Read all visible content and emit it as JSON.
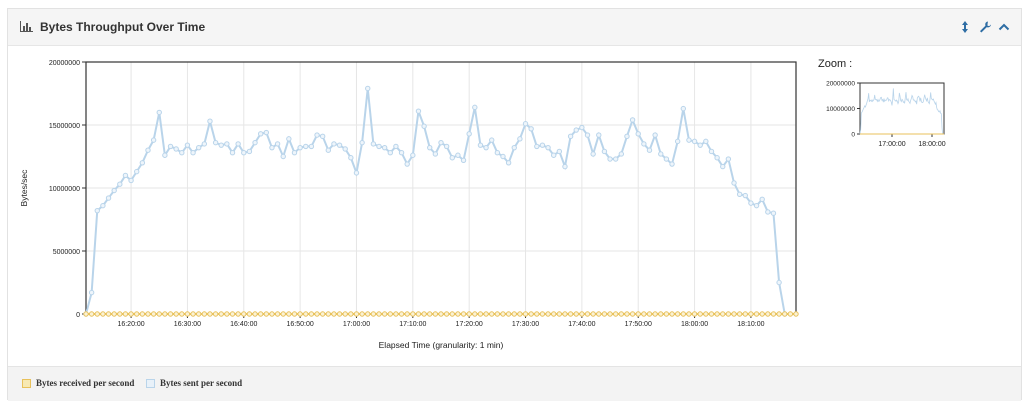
{
  "panel": {
    "title": "Bytes Throughput Over Time",
    "title_icon": "bar-chart-icon",
    "buttons": [
      {
        "name": "resize-icon",
        "glyph": "↕"
      },
      {
        "name": "wrench-icon",
        "glyph": "🔧"
      },
      {
        "name": "collapse-icon",
        "glyph": "^"
      }
    ]
  },
  "zoom": {
    "label": "Zoom :",
    "y_ticks": [
      "20000000",
      "10000000",
      "0"
    ],
    "x_ticks": [
      "17:00:00",
      "18:00:00"
    ]
  },
  "legend": [
    {
      "label": "Bytes received per second",
      "color": "#e8c15b"
    },
    {
      "label": "Bytes sent per second",
      "color": "#b9d4ea"
    }
  ],
  "colors": {
    "received": "#e8c15b",
    "received_fill": "#f7e9b3",
    "sent": "#b9d4ea",
    "sent_fill": "#e8f1f9",
    "grid": "#e6e6e6",
    "axis": "#333333",
    "accent": "#2e6da4"
  },
  "chart_data": {
    "type": "line",
    "title": "",
    "xlabel": "Elapsed Time (granularity: 1 min)",
    "ylabel": "Bytes/sec",
    "ylim": [
      0,
      20000000
    ],
    "y_ticks": [
      0,
      5000000,
      10000000,
      15000000,
      20000000
    ],
    "y_tick_labels": [
      "0",
      "5000000",
      "10000000",
      "15000000",
      "20000000"
    ],
    "x_start": "16:12",
    "x_end": "18:18",
    "x_ticks": [
      "16:20:00",
      "16:30:00",
      "16:40:00",
      "16:50:00",
      "17:00:00",
      "17:10:00",
      "17:20:00",
      "17:30:00",
      "17:40:00",
      "17:50:00",
      "18:00:00",
      "18:10:00"
    ],
    "grid": true,
    "legend_position": "bottom",
    "series": [
      {
        "name": "Bytes received per second",
        "color": "#e8c15b",
        "values": [
          0,
          0,
          0,
          0,
          0,
          0,
          0,
          0,
          0,
          0,
          0,
          0,
          0,
          0,
          0,
          0,
          0,
          0,
          0,
          0,
          0,
          0,
          0,
          0,
          0,
          0,
          0,
          0,
          0,
          0,
          0,
          0,
          0,
          0,
          0,
          0,
          0,
          0,
          0,
          0,
          0,
          0,
          0,
          0,
          0,
          0,
          0,
          0,
          0,
          0,
          0,
          0,
          0,
          0,
          0,
          0,
          0,
          0,
          0,
          0,
          0,
          0,
          0,
          0,
          0,
          0,
          0,
          0,
          0,
          0,
          0,
          0,
          0,
          0,
          0,
          0,
          0,
          0,
          0,
          0,
          0,
          0,
          0,
          0,
          0,
          0,
          0,
          0,
          0,
          0,
          0,
          0,
          0,
          0,
          0,
          0,
          0,
          0,
          0,
          0,
          0,
          0,
          0,
          0,
          0,
          0,
          0,
          0,
          0,
          0,
          0,
          0,
          0,
          0,
          0,
          0,
          0,
          0,
          0,
          0,
          0,
          0,
          0,
          0,
          0,
          0,
          0
        ]
      },
      {
        "name": "Bytes sent per second",
        "color": "#b9d4ea",
        "values": [
          0,
          1700000,
          8200000,
          8600000,
          9200000,
          9800000,
          10300000,
          11000000,
          10600000,
          11300000,
          12000000,
          13000000,
          13800000,
          16000000,
          12600000,
          13300000,
          13100000,
          12800000,
          13400000,
          12800000,
          13200000,
          13500000,
          15300000,
          13600000,
          13400000,
          13500000,
          12800000,
          13500000,
          12800000,
          12900000,
          13600000,
          14300000,
          14400000,
          13200000,
          13500000,
          12500000,
          13900000,
          12800000,
          13200000,
          13300000,
          13300000,
          14200000,
          14100000,
          13000000,
          13500000,
          13400000,
          13100000,
          12400000,
          11200000,
          13600000,
          17900000,
          13500000,
          13300000,
          13200000,
          12800000,
          13300000,
          12800000,
          11900000,
          12600000,
          16100000,
          14900000,
          13200000,
          12700000,
          13600000,
          13300000,
          12400000,
          12600000,
          12200000,
          14300000,
          16400000,
          13400000,
          13200000,
          13800000,
          12800000,
          12500000,
          12000000,
          13200000,
          13900000,
          15100000,
          14700000,
          13300000,
          13400000,
          13200000,
          12600000,
          12900000,
          11700000,
          14100000,
          14600000,
          14800000,
          14200000,
          12700000,
          14200000,
          12900000,
          12300000,
          12300000,
          12700000,
          14100000,
          15400000,
          14300000,
          13500000,
          13000000,
          14200000,
          12700000,
          12300000,
          11900000,
          13700000,
          16300000,
          13800000,
          13700000,
          13400000,
          13700000,
          12900000,
          12400000,
          11700000,
          12300000,
          10400000,
          9500000,
          9400000,
          8800000,
          8600000,
          9100000,
          8100000,
          8000000,
          2500000,
          0
        ]
      }
    ]
  }
}
